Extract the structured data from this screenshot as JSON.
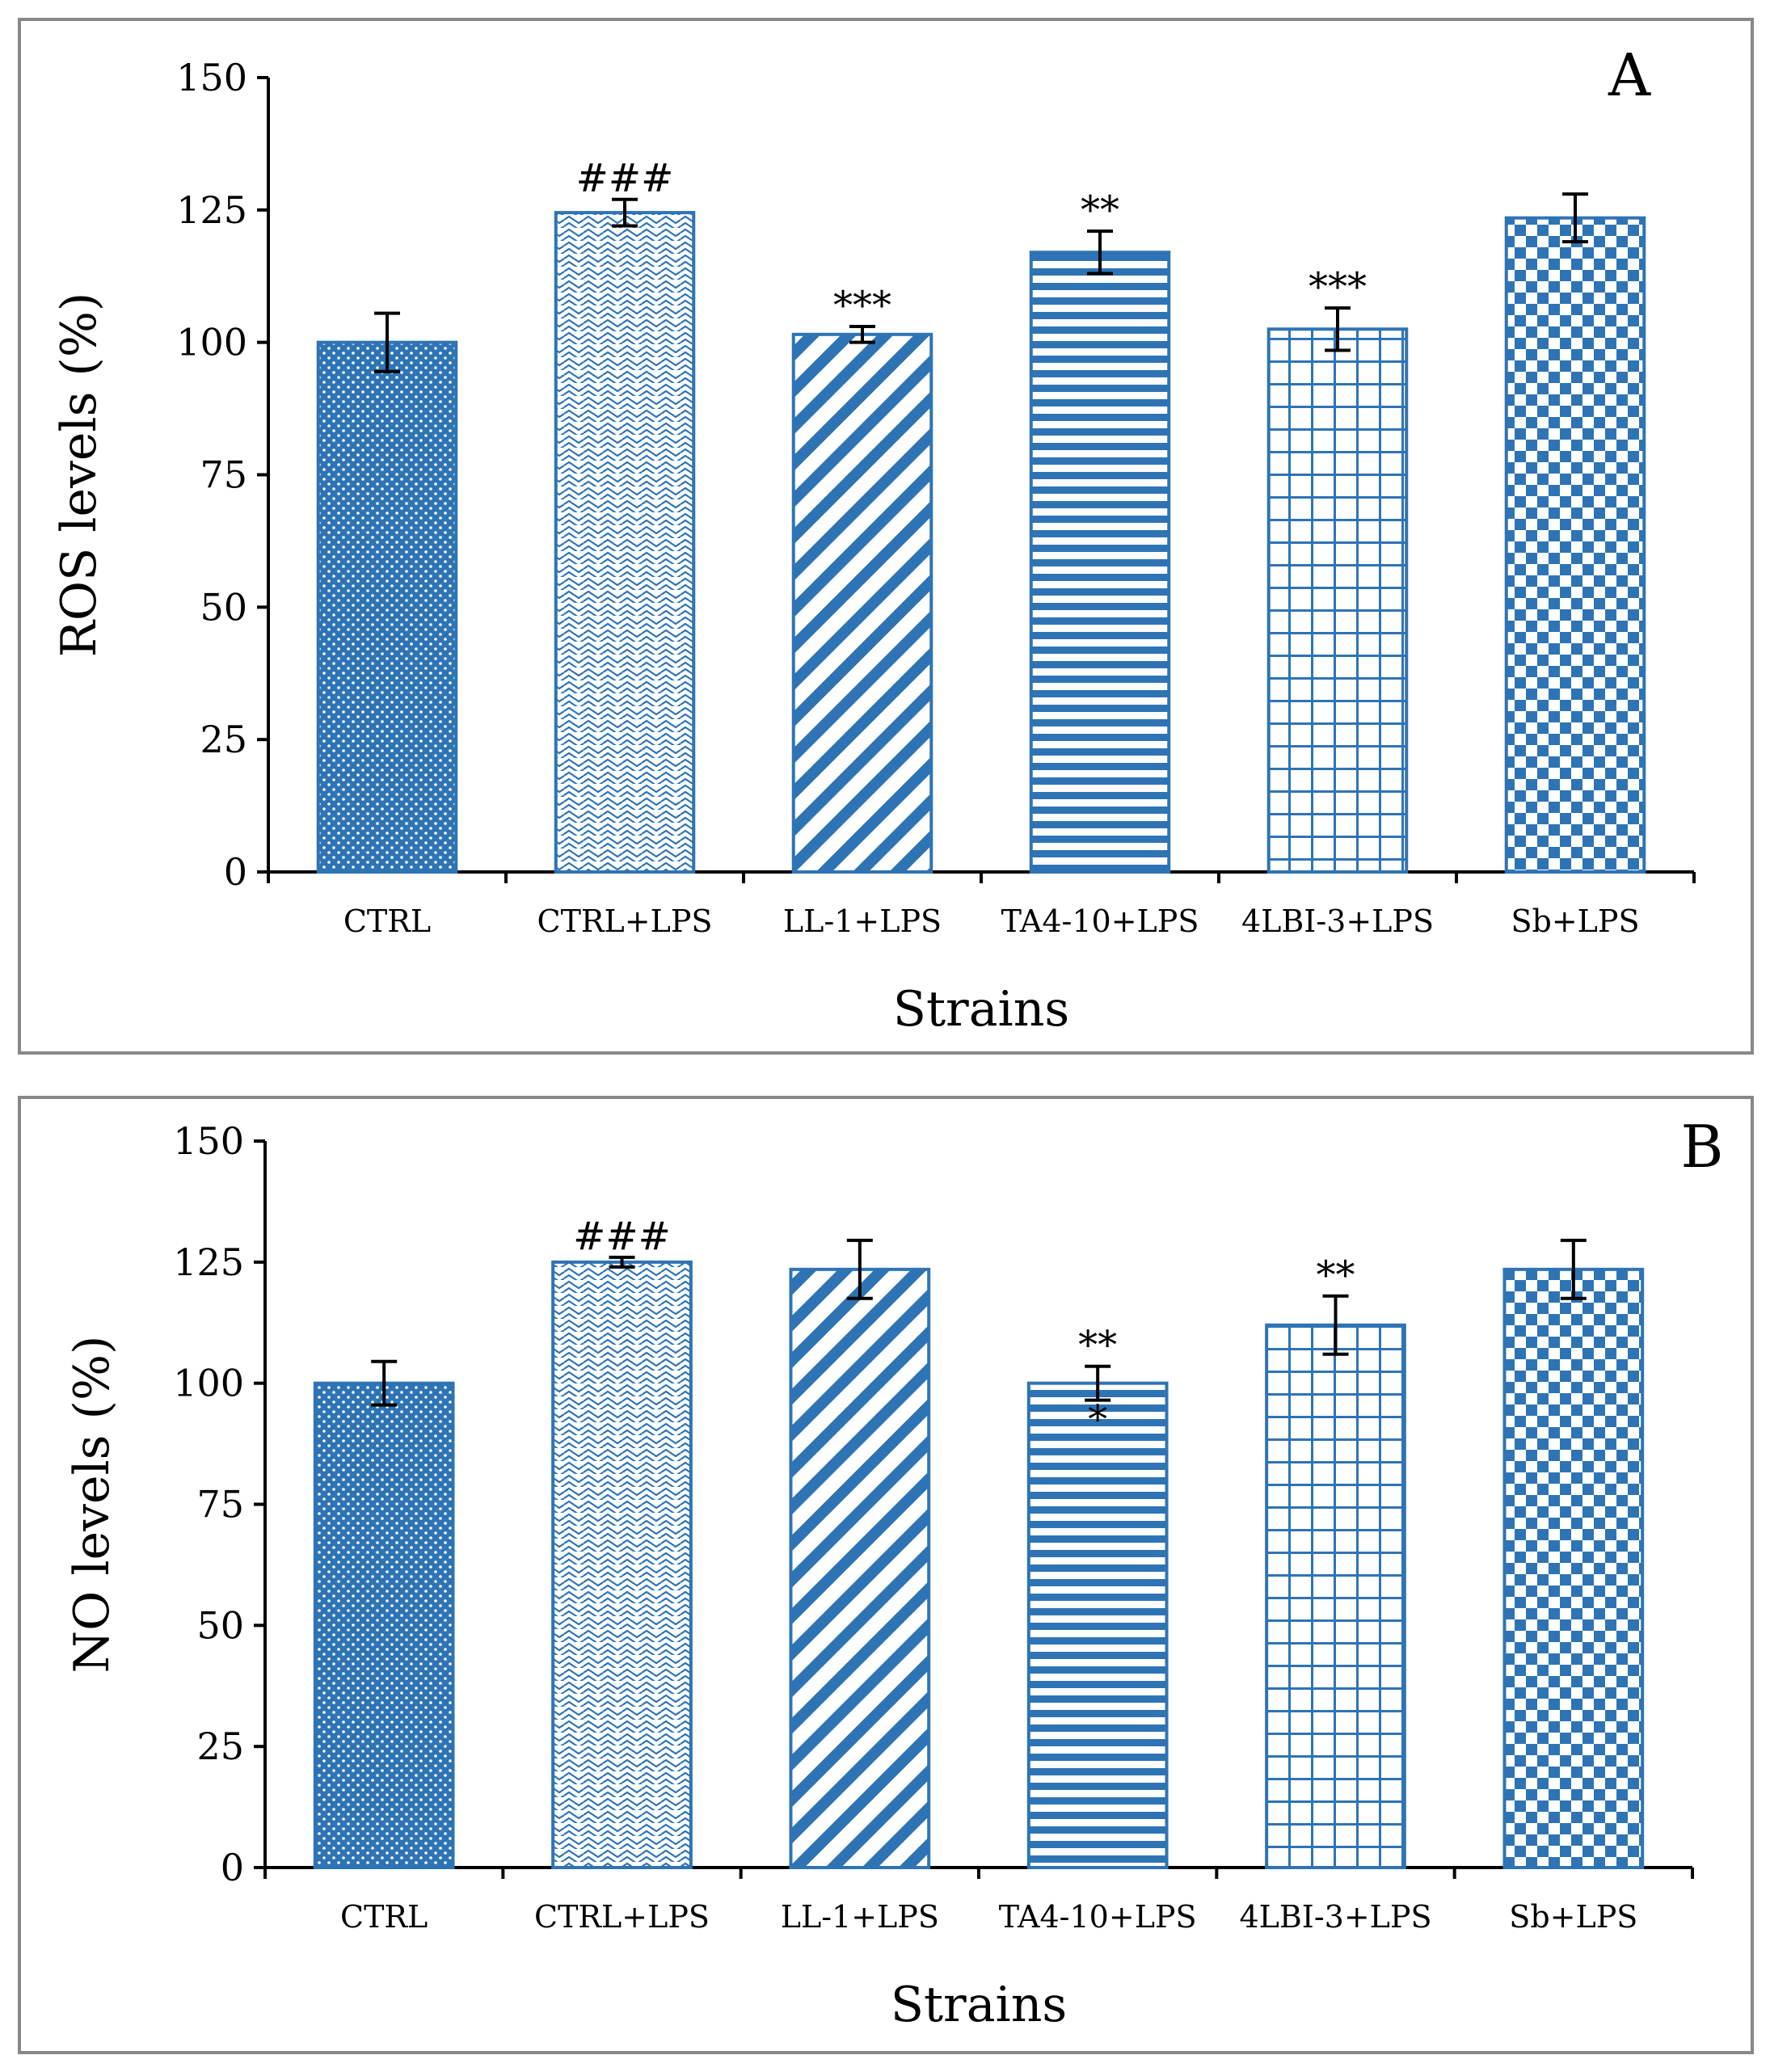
{
  "chart_data": [
    {
      "type": "bar",
      "panel_label": "A",
      "categories": [
        "CTRL",
        "CTRL+LPS",
        "LL-1+LPS",
        "TA4-10+LPS",
        "4LBI-3+LPS",
        "Sb+LPS"
      ],
      "values": [
        100,
        124.5,
        101.5,
        117,
        102.5,
        123.5
      ],
      "errors": [
        5.5,
        2.5,
        1.5,
        4,
        4,
        4.5
      ],
      "significance": [
        "",
        "###",
        "***",
        "**",
        "***",
        ""
      ],
      "patterns": [
        "dots",
        "waves",
        "diagonal",
        "horizontal",
        "grid",
        "checker"
      ],
      "xlabel": "Strains",
      "ylabel": "ROS levels (%)",
      "ylim": [
        0,
        150
      ],
      "yticks": [
        "0",
        "25",
        "50",
        "75",
        "100",
        "125",
        "150"
      ],
      "grid": false,
      "bar_color": "#2e74b5"
    },
    {
      "type": "bar",
      "panel_label": "B",
      "categories": [
        "CTRL",
        "CTRL+LPS",
        "LL-1+LPS",
        "TA4-10+LPS",
        "4LBI-3+LPS",
        "Sb+LPS"
      ],
      "values": [
        100,
        125,
        123.5,
        100,
        112,
        123.5
      ],
      "errors": [
        4.5,
        1,
        6,
        3.5,
        6,
        6
      ],
      "significance": [
        "",
        "###",
        "",
        "**\n*",
        "**",
        ""
      ],
      "patterns": [
        "dots",
        "waves",
        "diagonal",
        "horizontal",
        "grid",
        "checker"
      ],
      "xlabel": "Strains",
      "ylabel": "NO levels  (%)",
      "ylim": [
        0,
        150
      ],
      "yticks": [
        "0",
        "25",
        "50",
        "75",
        "100",
        "125",
        "150"
      ],
      "grid": false,
      "bar_color": "#2e74b5"
    }
  ]
}
